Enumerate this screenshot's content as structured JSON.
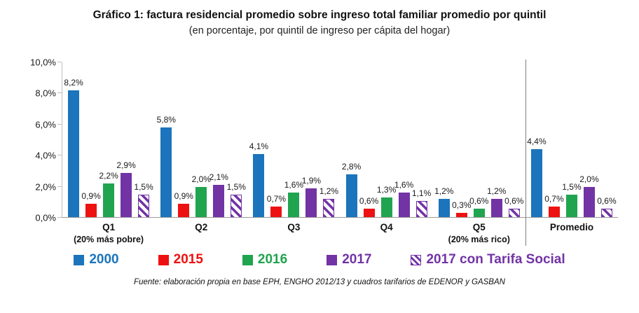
{
  "title": "Gráfico 1: factura residencial promedio sobre ingreso total familiar promedio por quintil",
  "subtitle": "(en porcentaje, por quintil de ingreso per cápita del hogar)",
  "source_note": "Fuente: elaboración propia en base EPH, ENGHO 2012/13 y  cuadros tarifarios de EDENOR y GASBAN",
  "colors": {
    "series_2000": "#1B74BC",
    "series_2015": "#EE1111",
    "series_2016": "#20A44F",
    "series_2017": "#7233A5",
    "series_2017_tarifa_social": "#7233A5",
    "y_axis_line": "#BFBFBF",
    "x_axis_line": "#9B9B9B",
    "divider_line": "#7F7F7F",
    "label_text": "#1A1A1A"
  },
  "chart_data": {
    "type": "bar",
    "title": "Gráfico 1: factura residencial promedio sobre ingreso total familiar promedio por quintil",
    "subtitle": "(en porcentaje, por quintil de ingreso per cápita del hogar)",
    "categories": [
      "Q1",
      "Q2",
      "Q3",
      "Q4",
      "Q5",
      "Promedio"
    ],
    "category_sublabels": [
      "(20% más pobre)",
      "",
      "",
      "",
      "(20% más rico)",
      ""
    ],
    "series": [
      {
        "name": "2000",
        "color": "#1B74BC",
        "pattern": "solid",
        "values": [
          8.2,
          5.8,
          4.1,
          2.8,
          1.2,
          4.4
        ]
      },
      {
        "name": "2015",
        "color": "#EE1111",
        "pattern": "solid",
        "values": [
          0.9,
          0.9,
          0.7,
          0.6,
          0.3,
          0.7
        ]
      },
      {
        "name": "2016",
        "color": "#20A44F",
        "pattern": "solid",
        "values": [
          2.2,
          2.0,
          1.6,
          1.3,
          0.6,
          1.5
        ]
      },
      {
        "name": "2017",
        "color": "#7233A5",
        "pattern": "solid",
        "values": [
          2.9,
          2.1,
          1.9,
          1.6,
          1.2,
          2.0
        ]
      },
      {
        "name": "2017 con Tarifa Social",
        "color": "#7233A5",
        "pattern": "diagonal-hatch",
        "values": [
          1.5,
          1.5,
          1.2,
          1.1,
          0.6,
          0.6
        ]
      }
    ],
    "value_labels": [
      [
        "8,2%",
        "0,9%",
        "2,2%",
        "2,9%",
        "1,5%"
      ],
      [
        "5,8%",
        "0,9%",
        "2,0%",
        "2,1%",
        "1,5%"
      ],
      [
        "4,1%",
        "0,7%",
        "1,6%",
        "1,9%",
        "1,2%"
      ],
      [
        "2,8%",
        "0,6%",
        "1,3%",
        "1,6%",
        "1,1%"
      ],
      [
        "1,2%",
        "0,3%",
        "0,6%",
        "1,2%",
        "0,6%"
      ],
      [
        "4,4%",
        "0,7%",
        "1,5%",
        "2,0%",
        "0,6%"
      ]
    ],
    "ylim": [
      0,
      10
    ],
    "y_ticks": [
      0,
      2,
      4,
      6,
      8,
      10
    ],
    "y_tick_labels": [
      "0,0%",
      "2,0%",
      "4,0%",
      "6,0%",
      "8,0%",
      "10,0%"
    ],
    "grid": false,
    "legend_position": "bottom",
    "separator_before_category": "Promedio",
    "xlabel": "",
    "ylabel": ""
  }
}
